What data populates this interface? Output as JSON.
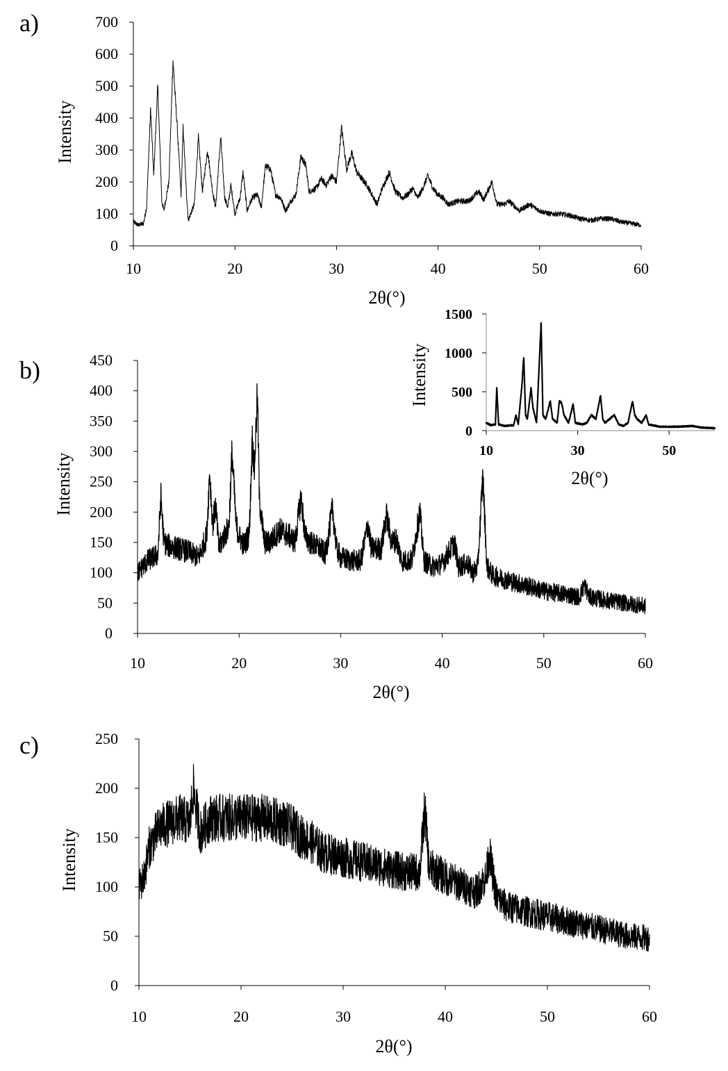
{
  "chart_data": [
    {
      "id": "a",
      "type": "line",
      "panel_label": "a)",
      "xlabel": "2θ(°)",
      "ylabel": "Intensity",
      "xlim": [
        10,
        60
      ],
      "xticks": [
        10,
        20,
        30,
        40,
        50,
        60
      ],
      "ylim": [
        0,
        700
      ],
      "yticks": [
        0,
        100,
        200,
        300,
        400,
        500,
        600,
        700
      ],
      "noise_amplitude": 12,
      "points": [
        [
          10,
          75
        ],
        [
          10.5,
          65
        ],
        [
          11,
          70
        ],
        [
          11.3,
          120
        ],
        [
          11.7,
          430
        ],
        [
          12,
          220
        ],
        [
          12.4,
          500
        ],
        [
          12.8,
          140
        ],
        [
          13,
          110
        ],
        [
          13.5,
          200
        ],
        [
          13.9,
          580
        ],
        [
          14.3,
          380
        ],
        [
          14.7,
          160
        ],
        [
          14.9,
          370
        ],
        [
          15.2,
          180
        ],
        [
          15.4,
          80
        ],
        [
          16,
          130
        ],
        [
          16.4,
          340
        ],
        [
          16.8,
          170
        ],
        [
          17.3,
          300
        ],
        [
          17.8,
          170
        ],
        [
          18.1,
          120
        ],
        [
          18.6,
          340
        ],
        [
          19,
          150
        ],
        [
          19.3,
          120
        ],
        [
          19.6,
          190
        ],
        [
          20,
          100
        ],
        [
          20.5,
          150
        ],
        [
          20.8,
          230
        ],
        [
          21.2,
          110
        ],
        [
          21.7,
          150
        ],
        [
          22.2,
          160
        ],
        [
          22.6,
          120
        ],
        [
          23,
          250
        ],
        [
          23.5,
          240
        ],
        [
          24,
          160
        ],
        [
          24.5,
          150
        ],
        [
          25,
          110
        ],
        [
          25.5,
          140
        ],
        [
          26,
          160
        ],
        [
          26.5,
          280
        ],
        [
          27,
          250
        ],
        [
          27.3,
          170
        ],
        [
          28,
          180
        ],
        [
          28.5,
          210
        ],
        [
          29,
          190
        ],
        [
          29.5,
          220
        ],
        [
          30,
          200
        ],
        [
          30.5,
          370
        ],
        [
          31,
          240
        ],
        [
          31.5,
          290
        ],
        [
          32,
          230
        ],
        [
          32.5,
          210
        ],
        [
          33,
          190
        ],
        [
          33.5,
          160
        ],
        [
          34,
          130
        ],
        [
          34.5,
          180
        ],
        [
          35.2,
          230
        ],
        [
          35.8,
          170
        ],
        [
          36.5,
          150
        ],
        [
          37,
          160
        ],
        [
          37.5,
          180
        ],
        [
          38,
          150
        ],
        [
          38.5,
          180
        ],
        [
          39,
          220
        ],
        [
          39.5,
          180
        ],
        [
          40,
          160
        ],
        [
          40.5,
          150
        ],
        [
          41,
          130
        ],
        [
          42,
          140
        ],
        [
          43,
          140
        ],
        [
          44,
          170
        ],
        [
          44.5,
          145
        ],
        [
          45.3,
          200
        ],
        [
          45.8,
          130
        ],
        [
          46.5,
          130
        ],
        [
          47,
          140
        ],
        [
          48,
          110
        ],
        [
          49,
          130
        ],
        [
          50,
          110
        ],
        [
          51,
          100
        ],
        [
          52,
          100
        ],
        [
          53,
          95
        ],
        [
          54,
          85
        ],
        [
          55,
          80
        ],
        [
          56,
          85
        ],
        [
          57,
          85
        ],
        [
          58,
          75
        ],
        [
          59,
          70
        ],
        [
          60,
          65
        ]
      ]
    },
    {
      "id": "b",
      "type": "line",
      "panel_label": "b)",
      "xlabel": "2θ(°)",
      "ylabel": "Intensity",
      "xlim": [
        10,
        60
      ],
      "xticks": [
        10,
        20,
        30,
        40,
        50,
        60
      ],
      "ylim": [
        0,
        450
      ],
      "yticks": [
        0,
        50,
        100,
        150,
        200,
        250,
        300,
        350,
        400,
        450
      ],
      "noise_amplitude": 22,
      "points": [
        [
          10,
          100
        ],
        [
          11,
          120
        ],
        [
          12,
          130
        ],
        [
          12.3,
          225
        ],
        [
          12.6,
          150
        ],
        [
          13,
          145
        ],
        [
          14,
          140
        ],
        [
          15,
          135
        ],
        [
          16,
          125
        ],
        [
          16.8,
          160
        ],
        [
          17.1,
          265
        ],
        [
          17.4,
          180
        ],
        [
          17.7,
          210
        ],
        [
          18,
          140
        ],
        [
          18.5,
          160
        ],
        [
          19,
          175
        ],
        [
          19.3,
          300
        ],
        [
          19.7,
          180
        ],
        [
          20,
          160
        ],
        [
          20.5,
          145
        ],
        [
          21,
          165
        ],
        [
          21.3,
          320
        ],
        [
          21.5,
          270
        ],
        [
          21.8,
          395
        ],
        [
          22,
          220
        ],
        [
          22.5,
          150
        ],
        [
          23,
          150
        ],
        [
          24,
          170
        ],
        [
          25,
          160
        ],
        [
          25.5,
          150
        ],
        [
          26.1,
          225
        ],
        [
          26.5,
          160
        ],
        [
          27,
          150
        ],
        [
          28,
          140
        ],
        [
          28.5,
          130
        ],
        [
          29.2,
          205
        ],
        [
          29.6,
          140
        ],
        [
          30,
          125
        ],
        [
          31,
          120
        ],
        [
          32,
          120
        ],
        [
          32.7,
          180
        ],
        [
          33,
          140
        ],
        [
          34,
          140
        ],
        [
          34.5,
          195
        ],
        [
          35,
          150
        ],
        [
          35.5,
          155
        ],
        [
          36,
          120
        ],
        [
          37,
          120
        ],
        [
          37.8,
          200
        ],
        [
          38.2,
          120
        ],
        [
          39,
          110
        ],
        [
          40,
          115
        ],
        [
          41.2,
          150
        ],
        [
          41.6,
          110
        ],
        [
          42.5,
          115
        ],
        [
          43,
          100
        ],
        [
          43.5,
          110
        ],
        [
          44,
          260
        ],
        [
          44.4,
          110
        ],
        [
          45,
          95
        ],
        [
          46,
          90
        ],
        [
          47,
          85
        ],
        [
          48,
          80
        ],
        [
          49,
          75
        ],
        [
          50,
          70
        ],
        [
          52,
          65
        ],
        [
          53.5,
          60
        ],
        [
          54,
          80
        ],
        [
          54.5,
          60
        ],
        [
          56,
          55
        ],
        [
          58,
          50
        ],
        [
          60,
          45
        ]
      ],
      "inset": {
        "type": "line",
        "xlabel": "2θ(°)",
        "ylabel": "Intensity",
        "xlim": [
          10,
          60
        ],
        "xticks": [
          10,
          30,
          50
        ],
        "ylim": [
          0,
          1500
        ],
        "yticks": [
          0,
          500,
          1000,
          1500
        ],
        "noise_amplitude": 15,
        "points": [
          [
            10,
            100
          ],
          [
            11,
            70
          ],
          [
            12,
            80
          ],
          [
            12.3,
            550
          ],
          [
            12.7,
            80
          ],
          [
            14,
            60
          ],
          [
            16,
            70
          ],
          [
            16.5,
            200
          ],
          [
            17,
            80
          ],
          [
            17.8,
            580
          ],
          [
            18.2,
            950
          ],
          [
            18.6,
            200
          ],
          [
            19,
            150
          ],
          [
            19.8,
            550
          ],
          [
            20.2,
            300
          ],
          [
            21,
            100
          ],
          [
            22,
            1380
          ],
          [
            22.4,
            200
          ],
          [
            23,
            150
          ],
          [
            24,
            380
          ],
          [
            24.5,
            150
          ],
          [
            25.5,
            100
          ],
          [
            26,
            380
          ],
          [
            26.5,
            350
          ],
          [
            27,
            200
          ],
          [
            28,
            100
          ],
          [
            29,
            340
          ],
          [
            29.5,
            100
          ],
          [
            31,
            80
          ],
          [
            32,
            100
          ],
          [
            33,
            200
          ],
          [
            34,
            150
          ],
          [
            35,
            450
          ],
          [
            35.5,
            150
          ],
          [
            36,
            100
          ],
          [
            37,
            150
          ],
          [
            38,
            200
          ],
          [
            39,
            80
          ],
          [
            40,
            60
          ],
          [
            41,
            100
          ],
          [
            42,
            380
          ],
          [
            42.5,
            200
          ],
          [
            43,
            150
          ],
          [
            44,
            100
          ],
          [
            45,
            200
          ],
          [
            45.5,
            80
          ],
          [
            48,
            50
          ],
          [
            52,
            50
          ],
          [
            55,
            60
          ],
          [
            57,
            40
          ],
          [
            60,
            30
          ]
        ]
      }
    },
    {
      "id": "c",
      "type": "line",
      "panel_label": "c)",
      "xlabel": "2θ(°)",
      "ylabel": "Intensity",
      "xlim": [
        10,
        60
      ],
      "xticks": [
        10,
        20,
        30,
        40,
        50,
        60
      ],
      "ylim": [
        0,
        250
      ],
      "yticks": [
        0,
        50,
        100,
        150,
        200,
        250
      ],
      "noise_amplitude": 18,
      "points": [
        [
          10,
          100
        ],
        [
          10.5,
          110
        ],
        [
          11,
          140
        ],
        [
          12,
          160
        ],
        [
          13,
          165
        ],
        [
          14,
          170
        ],
        [
          15,
          165
        ],
        [
          15.3,
          200
        ],
        [
          16,
          155
        ],
        [
          17,
          170
        ],
        [
          18,
          170
        ],
        [
          20,
          170
        ],
        [
          22,
          170
        ],
        [
          24,
          165
        ],
        [
          25,
          160
        ],
        [
          26,
          150
        ],
        [
          27,
          145
        ],
        [
          28,
          135
        ],
        [
          30,
          130
        ],
        [
          32,
          125
        ],
        [
          34,
          120
        ],
        [
          36,
          115
        ],
        [
          37.5,
          115
        ],
        [
          38,
          180
        ],
        [
          38.4,
          120
        ],
        [
          40,
          110
        ],
        [
          42,
          100
        ],
        [
          43,
          95
        ],
        [
          44,
          110
        ],
        [
          44.3,
          135
        ],
        [
          45,
          90
        ],
        [
          46,
          80
        ],
        [
          48,
          75
        ],
        [
          50,
          70
        ],
        [
          52,
          65
        ],
        [
          54,
          60
        ],
        [
          56,
          55
        ],
        [
          58,
          50
        ],
        [
          60,
          48
        ]
      ]
    }
  ]
}
